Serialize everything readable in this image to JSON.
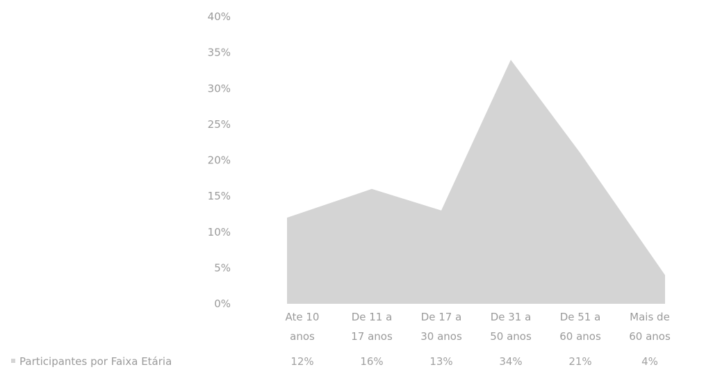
{
  "chart_data": {
    "type": "area",
    "categories": [
      [
        "Ate 10",
        "anos"
      ],
      [
        "De 11 a",
        "17 anos"
      ],
      [
        "De 17 a",
        "30 anos"
      ],
      [
        "De 31 a",
        "50 anos"
      ],
      [
        "De 51 a",
        "60 anos"
      ],
      [
        "Mais de",
        "60 anos"
      ]
    ],
    "series": [
      {
        "name": "Participantes por Faixa Etária",
        "values": [
          12,
          16,
          13,
          34,
          21,
          4
        ],
        "value_labels": [
          "12%",
          "16%",
          "13%",
          "34%",
          "21%",
          "4%"
        ]
      }
    ],
    "ylim": [
      0,
      40
    ],
    "ytick_labels": [
      "0%",
      "5%",
      "10%",
      "15%",
      "20%",
      "25%",
      "30%",
      "35%",
      "40%"
    ],
    "grid": false,
    "legend": "bottom-left, as data table row",
    "colors": {
      "area": "#d4d4d4",
      "text": "#9a9a9a"
    }
  }
}
